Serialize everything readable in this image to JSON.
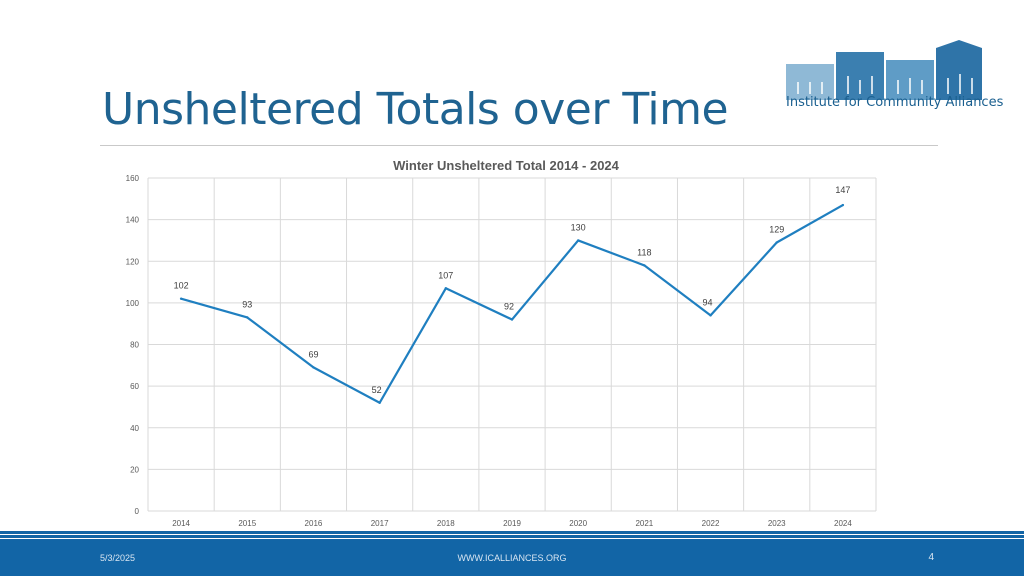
{
  "slide": {
    "title": "Unsheltered Totals over Time",
    "logo_text": "Institute for Community Alliances",
    "footer_date": "5/3/2025",
    "footer_site": "WWW.ICALLIANCES.ORG",
    "page_number": "4"
  },
  "colors": {
    "title": "#1f6391",
    "line": "#1f7fc0",
    "footer": "#1265a6"
  },
  "chart_data": {
    "type": "line",
    "title": "Winter Unsheltered Total 2014 - 2024",
    "categories": [
      "2014",
      "2015",
      "2016",
      "2017",
      "2018",
      "2019",
      "2020",
      "2021",
      "2022",
      "2023",
      "2024"
    ],
    "values": [
      102,
      93,
      69,
      52,
      107,
      92,
      130,
      118,
      94,
      129,
      147
    ],
    "ylim": [
      0,
      160
    ],
    "yticks": [
      0,
      20,
      40,
      60,
      80,
      100,
      120,
      140,
      160
    ],
    "grid": true,
    "legend": "none",
    "xlabel": "",
    "ylabel": ""
  }
}
